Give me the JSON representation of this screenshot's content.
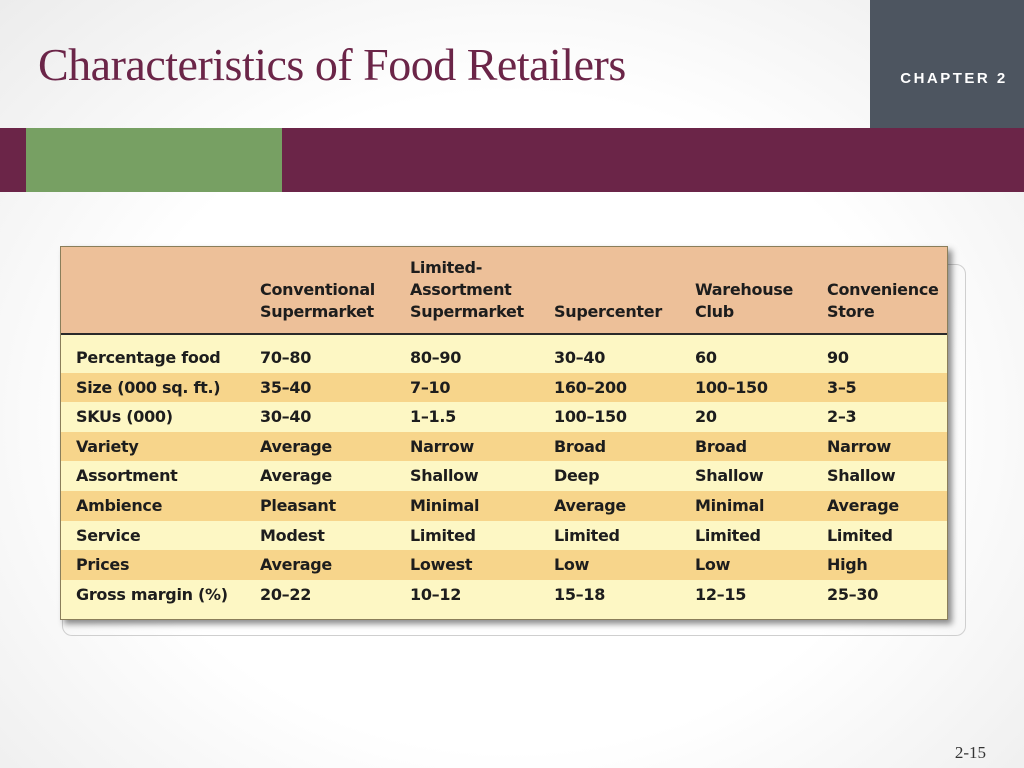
{
  "slide": {
    "title": "Characteristics of Food Retailers",
    "chapter_label": "CHAPTER 2",
    "page_number": "2-15"
  },
  "colors": {
    "title": "#6b2548",
    "band": "#6b2548",
    "band_accent": "#77a063",
    "chapter_box": "#4d5560",
    "table_header": "#edc099",
    "row_light": "#fdf7c4",
    "row_striped": "#f7d58b"
  },
  "table": {
    "headers": [
      "",
      "Conventional\nSupermarket",
      "Limited-\nAssortment\nSupermarket",
      "Supercenter",
      "Warehouse\nClub",
      "Convenience\nStore"
    ],
    "rows": [
      [
        "Percentage food",
        "70–80",
        "80–90",
        "30–40",
        "60",
        "90"
      ],
      [
        "Size (000 sq. ft.)",
        "35–40",
        "7–10",
        "160–200",
        "100–150",
        "3–5"
      ],
      [
        "SKUs (000)",
        "30–40",
        "1–1.5",
        "100–150",
        "20",
        "2–3"
      ],
      [
        "Variety",
        "Average",
        "Narrow",
        "Broad",
        "Broad",
        "Narrow"
      ],
      [
        "Assortment",
        "Average",
        "Shallow",
        "Deep",
        "Shallow",
        "Shallow"
      ],
      [
        "Ambience",
        "Pleasant",
        "Minimal",
        "Average",
        "Minimal",
        "Average"
      ],
      [
        "Service",
        "Modest",
        "Limited",
        "Limited",
        "Limited",
        "Limited"
      ],
      [
        "Prices",
        "Average",
        "Lowest",
        "Low",
        "Low",
        "High"
      ],
      [
        "Gross margin (%)",
        "20–22",
        "10–12",
        "15–18",
        "12–15",
        "25–30"
      ]
    ]
  }
}
